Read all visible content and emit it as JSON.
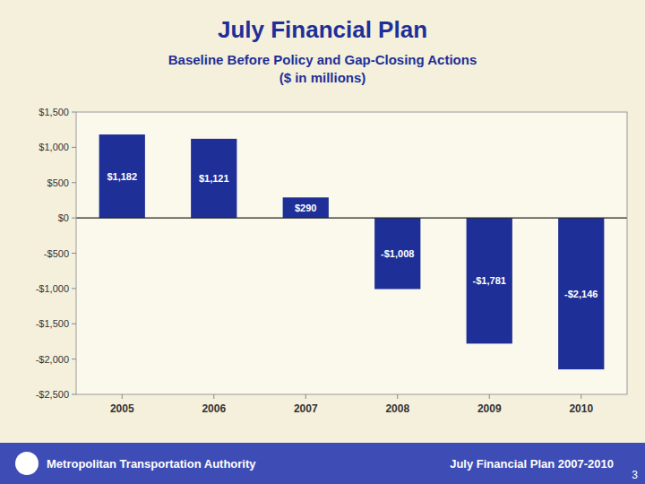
{
  "chart_data": {
    "type": "bar",
    "title": "July Financial Plan",
    "subtitle": "Baseline Before Policy and Gap-Closing Actions\n($ in millions)",
    "categories": [
      "2005",
      "2006",
      "2007",
      "2008",
      "2009",
      "2010"
    ],
    "values": [
      1182,
      1121,
      290,
      -1008,
      -1781,
      -2146
    ],
    "value_labels": [
      "$1,182",
      "$1,121",
      "$290",
      "-$1,008",
      "-$1,781",
      "-$2,146"
    ],
    "data_labels": true,
    "color": "#1e2f97",
    "ylim": [
      -2500,
      1500
    ],
    "yticks": [
      {
        "value": -2500,
        "label": "-$2,500"
      },
      {
        "value": -2000,
        "label": "-$2,000"
      },
      {
        "value": -1500,
        "label": "-$1,500"
      },
      {
        "value": -1000,
        "label": "-$1,000"
      },
      {
        "value": -500,
        "label": "-$500"
      },
      {
        "value": 0,
        "label": "$0"
      },
      {
        "value": 500,
        "label": "$500"
      },
      {
        "value": 1000,
        "label": "$1,000"
      },
      {
        "value": 1500,
        "label": "$1,500"
      }
    ],
    "grid": false,
    "annotations": [
      "Metropolitan Transportation Authority",
      "July Financial Plan 2007-2010",
      "3"
    ]
  }
}
